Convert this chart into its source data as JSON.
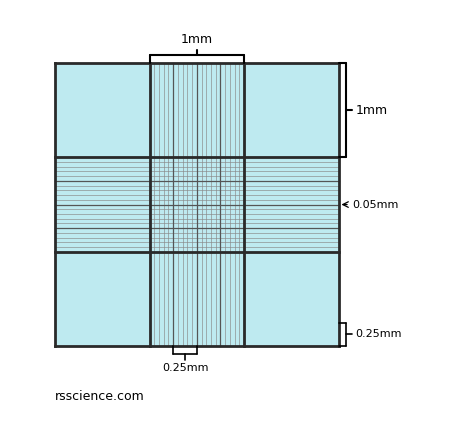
{
  "bg_color": "#beeaf0",
  "thick_line_color": "#2a2a2a",
  "medium_line_color": "#555555",
  "fine_line_color": "#888888",
  "light_line_color": "#7ecfdd",
  "outer_size": 3.0,
  "large_cell": 1.0,
  "medium_cell": 0.25,
  "small_cell": 0.05,
  "label_0p05": "0.05mm",
  "label_0p25_h": "0.25mm",
  "label_0p25_v": "0.25mm",
  "label_1mm_h": "1mm",
  "label_1mm_v": "1mm",
  "watermark": "rsscience.com"
}
